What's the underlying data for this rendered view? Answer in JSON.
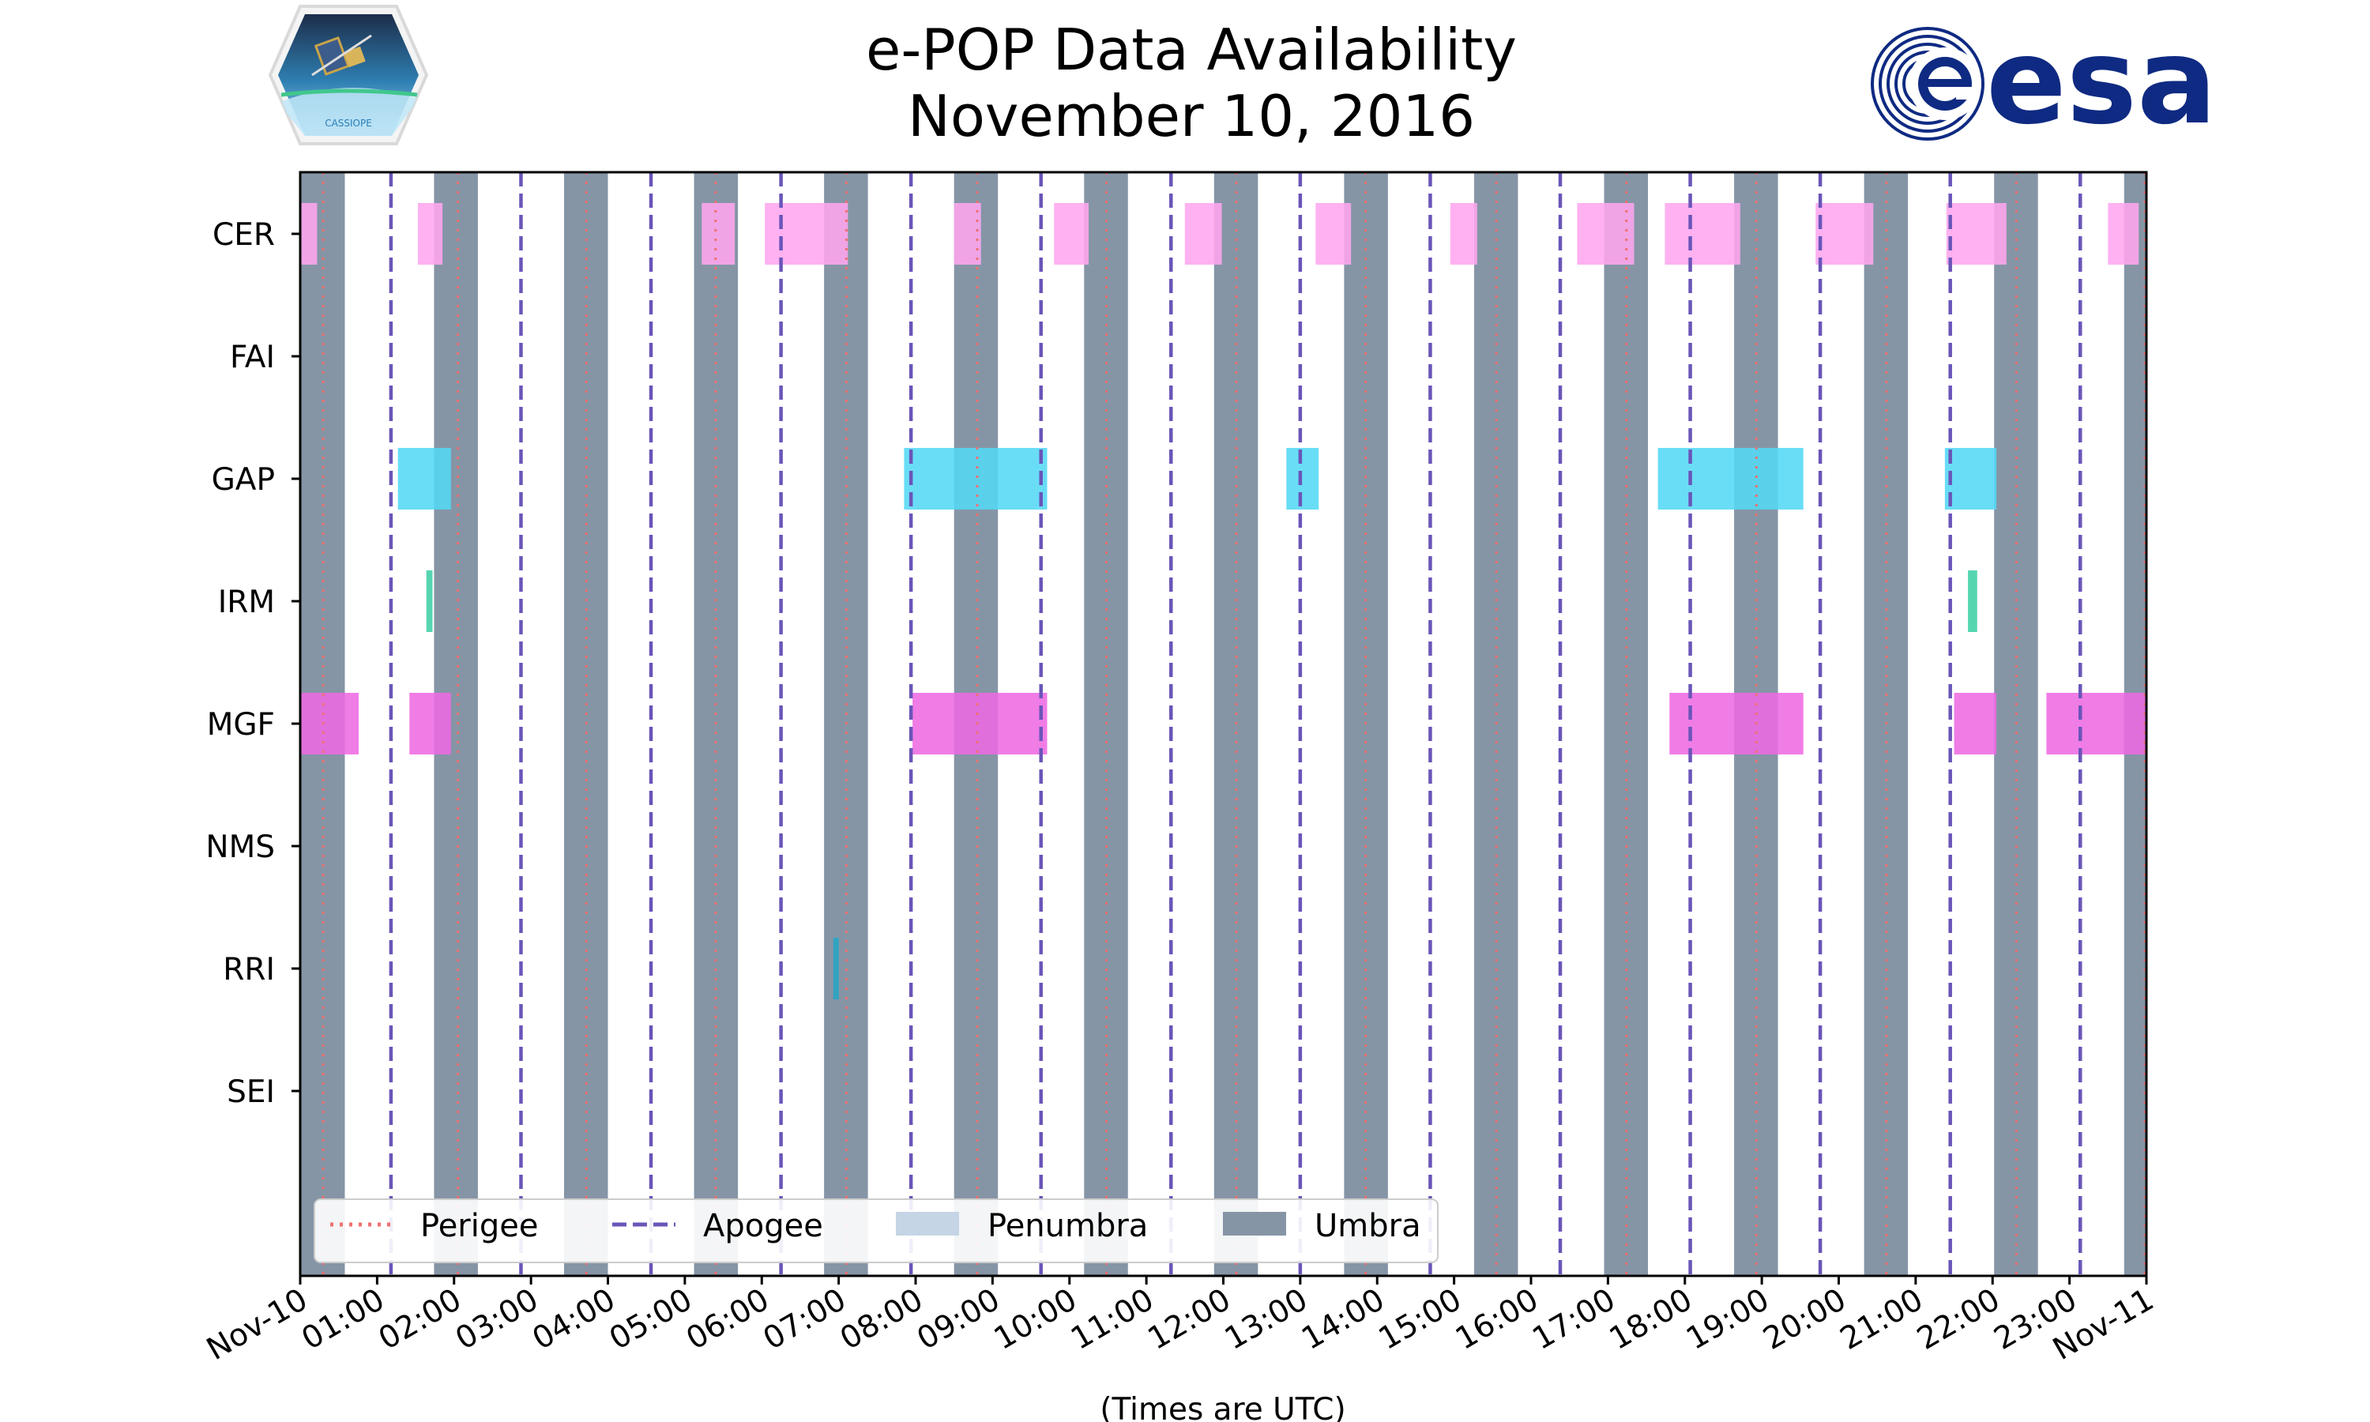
{
  "colors": {
    "umbra": "#8595a6",
    "penumbra": "#c6d5e6",
    "perigee": "#f07070",
    "apogee": "#6a55b8",
    "CER": "#ffa6ef",
    "GAP": "#54d8f5",
    "IRM": "#3fcfa6",
    "MGF": "#ee6ae3",
    "RRI": "#26a6c4",
    "esa": "#0f2a82"
  },
  "chart_data": {
    "type": "timeline",
    "title": [
      "e-POP Data Availability",
      "November 10, 2016"
    ],
    "xlabel": "(Times are UTC)",
    "xlim_hours": [
      0,
      24
    ],
    "x_tick_labels": [
      "Nov-10",
      "01:00",
      "02:00",
      "03:00",
      "04:00",
      "05:00",
      "06:00",
      "07:00",
      "08:00",
      "09:00",
      "10:00",
      "11:00",
      "12:00",
      "13:00",
      "14:00",
      "15:00",
      "16:00",
      "17:00",
      "18:00",
      "19:00",
      "20:00",
      "21:00",
      "22:00",
      "23:00",
      "Nov-11"
    ],
    "instruments": [
      "CER",
      "FAI",
      "GAP",
      "IRM",
      "MGF",
      "NMS",
      "RRI",
      "SEI"
    ],
    "umbra": [
      [
        0.0,
        0.58
      ],
      [
        1.74,
        2.31
      ],
      [
        3.43,
        4.0
      ],
      [
        5.12,
        5.69
      ],
      [
        6.81,
        7.38
      ],
      [
        8.5,
        9.07
      ],
      [
        10.19,
        10.76
      ],
      [
        11.88,
        12.45
      ],
      [
        13.57,
        14.14
      ],
      [
        15.26,
        15.83
      ],
      [
        16.95,
        17.52
      ],
      [
        18.64,
        19.21
      ],
      [
        20.33,
        20.9
      ],
      [
        22.02,
        22.59
      ],
      [
        23.71,
        24.0
      ]
    ],
    "perigee": [
      0.3,
      2.05,
      3.72,
      5.4,
      7.1,
      8.8,
      10.48,
      12.17,
      13.85,
      15.55,
      17.24,
      18.93,
      20.62,
      22.31,
      23.98
    ],
    "apogee": [
      1.18,
      2.87,
      4.56,
      6.25,
      7.94,
      9.63,
      11.32,
      13.0,
      14.69,
      16.38,
      18.07,
      19.76,
      21.45,
      23.14
    ],
    "data_bars": {
      "CER": [
        [
          0.0,
          0.22
        ],
        [
          1.53,
          1.85
        ],
        [
          5.22,
          5.65
        ],
        [
          6.04,
          7.12
        ],
        [
          8.5,
          8.85
        ],
        [
          9.8,
          10.25
        ],
        [
          11.5,
          11.98
        ],
        [
          13.2,
          13.66
        ],
        [
          14.95,
          15.3
        ],
        [
          16.6,
          17.34
        ],
        [
          17.74,
          18.72
        ],
        [
          19.7,
          20.45
        ],
        [
          21.4,
          22.18
        ],
        [
          23.5,
          23.9
        ]
      ],
      "GAP": [
        [
          1.27,
          1.96
        ],
        [
          7.85,
          9.71
        ],
        [
          12.82,
          13.24
        ],
        [
          17.65,
          19.54
        ],
        [
          21.38,
          22.05
        ]
      ],
      "IRM": [
        [
          1.64,
          1.72
        ],
        [
          21.68,
          21.8
        ]
      ],
      "MGF": [
        [
          0.0,
          0.76
        ],
        [
          1.42,
          1.96
        ],
        [
          7.96,
          9.71
        ],
        [
          17.8,
          19.54
        ],
        [
          21.5,
          22.05
        ],
        [
          22.7,
          24.0
        ]
      ],
      "RRI": [
        [
          6.93,
          6.98
        ]
      ]
    },
    "legend": {
      "position": "lower-left",
      "entries": [
        {
          "label": "Perigee",
          "style": "dotted"
        },
        {
          "label": "Apogee",
          "style": "dashed"
        },
        {
          "label": "Penumbra",
          "style": "patch"
        },
        {
          "label": "Umbra",
          "style": "patch"
        }
      ]
    }
  },
  "logos": {
    "left": "CASSIOPE",
    "right": "esa"
  }
}
